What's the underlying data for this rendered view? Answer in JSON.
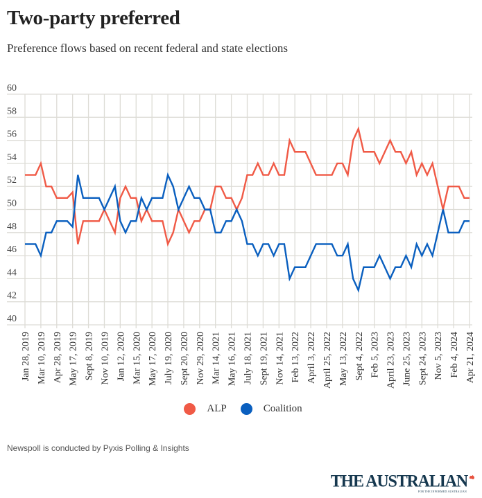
{
  "header": {
    "title": "Two-party preferred",
    "subtitle": "Preference flows based on recent federal and state elections"
  },
  "footer": {
    "note": "Newspoll is conducted by Pyxis Polling & Insights",
    "brand": "THE AUSTRALIAN",
    "brand_tagline": "FOR THE INFORMED AUSTRALIAN"
  },
  "chart_data": {
    "type": "line",
    "title": "Two-party preferred",
    "subtitle": "Preference flows based on recent federal and state elections",
    "xlabel": "",
    "ylabel": "",
    "ylim": [
      40,
      60
    ],
    "yticks": [
      40,
      42,
      44,
      46,
      48,
      50,
      52,
      54,
      56,
      58,
      60
    ],
    "grid": true,
    "legend_position": "bottom-center",
    "points_per_label_interval": 3,
    "xtick_labels": [
      "Jan 28, 2019",
      "Mar 10, 2019",
      "Apr 28, 2019",
      "May 17, 2019",
      "Sept 8, 2019",
      "Nov 10, 2019",
      "Jan 12, 2020",
      "Mar 15, 2020",
      "May 17, 2020",
      "July 19, 2020",
      "Sept 20, 2020",
      "Nov 29, 2020",
      "Mar 14, 2021",
      "May 16, 2021",
      "July 18, 2021",
      "Sept 19, 2021",
      "Nov 14, 2021",
      "Feb 13, 2022",
      "April 3, 2022",
      "April 25, 2022",
      "May 13, 2022",
      "Sept 4, 2022",
      "Feb 5, 2023",
      "April 23, 2023",
      "June 25, 2023",
      "Sept 24, 2023",
      "Nov 5, 2023",
      "Feb 4, 2024",
      "Apr 21, 2024"
    ],
    "series": [
      {
        "name": "ALP",
        "color": "#f05a46",
        "values": [
          53,
          53,
          53,
          54,
          52,
          52,
          51,
          51,
          51,
          51.5,
          47,
          49,
          49,
          49,
          49,
          50,
          49,
          48,
          51,
          52,
          51,
          51,
          49,
          50,
          49,
          49,
          49,
          47,
          48,
          50,
          49,
          48,
          49,
          49,
          50,
          50,
          52,
          52,
          51,
          51,
          50,
          51,
          53,
          53,
          54,
          53,
          53,
          54,
          53,
          53,
          56,
          55,
          55,
          55,
          54,
          53,
          53,
          53,
          53,
          54,
          54,
          53,
          56,
          57,
          55,
          55,
          55,
          54,
          55,
          56,
          55,
          55,
          54,
          55,
          53,
          54,
          53,
          54,
          52,
          50,
          52,
          52,
          52,
          51,
          51
        ]
      },
      {
        "name": "Coalition",
        "color": "#0a5fbf",
        "values": [
          47,
          47,
          47,
          46,
          48,
          48,
          49,
          49,
          49,
          48.5,
          53,
          51,
          51,
          51,
          51,
          50,
          51,
          52,
          49,
          48,
          49,
          49,
          51,
          50,
          51,
          51,
          51,
          53,
          52,
          50,
          51,
          52,
          51,
          51,
          50,
          50,
          48,
          48,
          49,
          49,
          50,
          49,
          47,
          47,
          46,
          47,
          47,
          46,
          47,
          47,
          44,
          45,
          45,
          45,
          46,
          47,
          47,
          47,
          47,
          46,
          46,
          47,
          44,
          43,
          45,
          45,
          45,
          46,
          45,
          44,
          45,
          45,
          46,
          45,
          47,
          46,
          47,
          46,
          48,
          50,
          48,
          48,
          48,
          49,
          49
        ]
      }
    ]
  },
  "colors": {
    "alp": "#f05a46",
    "coalition": "#0a5fbf",
    "grid": "#dddcd6",
    "brand": "#16384f",
    "brand_accent": "#e8523f"
  }
}
